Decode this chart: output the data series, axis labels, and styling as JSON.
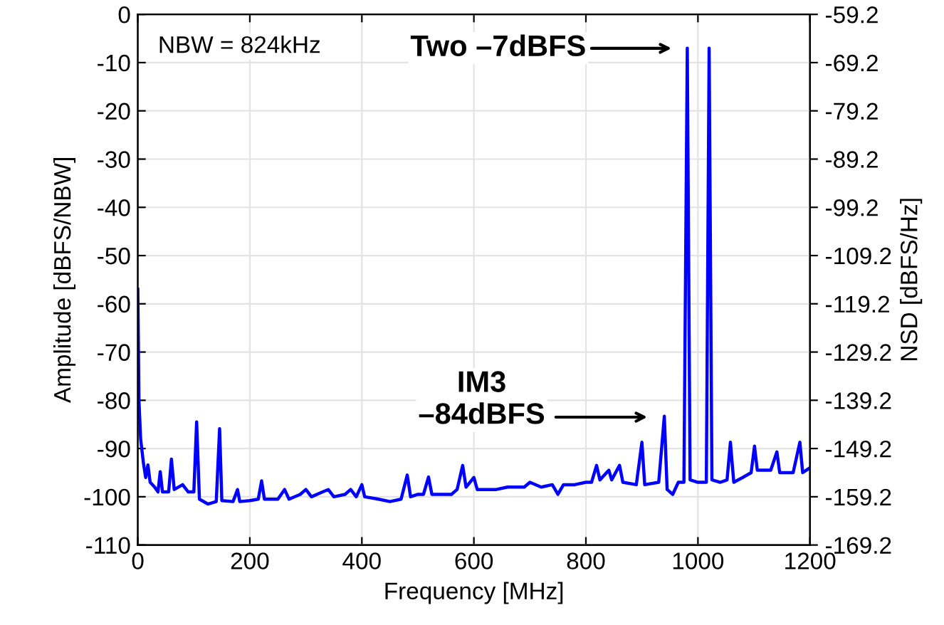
{
  "chart_data": {
    "type": "line",
    "xlabel": "Frequency [MHz]",
    "ylabel": "Amplitude [dBFS/NBW]",
    "y2label": "NSD [dBFS/Hz]",
    "xlim": [
      0,
      1200
    ],
    "xticks": [
      0,
      200,
      400,
      600,
      800,
      1000,
      1200
    ],
    "ylim": [
      -110,
      0
    ],
    "yticks": [
      -110,
      -100,
      -90,
      -80,
      -70,
      -60,
      -50,
      -40,
      -30,
      -20,
      -10,
      0
    ],
    "y2lim": [
      -169.2,
      -59.2
    ],
    "y2ticks": [
      -169.2,
      -159.2,
      -149.2,
      -139.2,
      -129.2,
      -119.2,
      -109.2,
      -99.2,
      -89.2,
      -79.2,
      -69.2,
      -59.2
    ],
    "grid": true,
    "annotations": [
      "NBW = 824kHz",
      "Two –7dBFS",
      "IM3\n–84dBFS"
    ],
    "series": [
      {
        "color": "#0000ff",
        "x": [
          0,
          2,
          5,
          10,
          14,
          18,
          22,
          30,
          36,
          40,
          44,
          55,
          60,
          65,
          80,
          90,
          100,
          105,
          110,
          125,
          140,
          146,
          150,
          170,
          178,
          182,
          200,
          215,
          221,
          226,
          250,
          262,
          270,
          290,
          300,
          310,
          330,
          340,
          350,
          370,
          380,
          390,
          400,
          405,
          430,
          450,
          470,
          481,
          487,
          500,
          510,
          519,
          525,
          560,
          570,
          580,
          586,
          600,
          606,
          640,
          660,
          690,
          700,
          720,
          740,
          750,
          760,
          780,
          800,
          810,
          819,
          825,
          841,
          846,
          860,
          866,
          890,
          900,
          905,
          930,
          940,
          945,
          955,
          965,
          975,
          981,
          986,
          1000,
          1015,
          1020,
          1025,
          1040,
          1052,
          1058,
          1064,
          1080,
          1095,
          1101,
          1106,
          1130,
          1141,
          1146,
          1170,
          1182,
          1187,
          1200
        ],
        "values": [
          -57,
          -80,
          -88,
          -93,
          -96,
          -93.4,
          -97,
          -98,
          -99,
          -94.8,
          -99,
          -99,
          -92.2,
          -98.5,
          -97.5,
          -99,
          -99,
          -84.5,
          -100.5,
          -101.5,
          -101,
          -85.9,
          -100.8,
          -101,
          -98.5,
          -101,
          -100.8,
          -100.5,
          -96.7,
          -100.5,
          -100.5,
          -98.5,
          -100.5,
          -99.5,
          -98.5,
          -100,
          -99,
          -98.5,
          -100,
          -99.5,
          -98.5,
          -100,
          -97.5,
          -100,
          -100.5,
          -101,
          -100.5,
          -95.5,
          -100,
          -99.5,
          -99.5,
          -95.9,
          -99.5,
          -99.5,
          -98.5,
          -93.5,
          -98,
          -96,
          -98.5,
          -98.5,
          -98,
          -98,
          -97,
          -98,
          -97.5,
          -99.5,
          -97.5,
          -97.5,
          -97,
          -97,
          -93.5,
          -96.5,
          -94.5,
          -96.5,
          -93.5,
          -97,
          -97.5,
          -88.7,
          -97.5,
          -97,
          -83.3,
          -98.5,
          -99.5,
          -97,
          -97,
          -7,
          -96.5,
          -97,
          -97,
          -7,
          -96.5,
          -97,
          -96.5,
          -88.7,
          -97,
          -96,
          -95,
          -89.5,
          -94.5,
          -94.5,
          -90.7,
          -95,
          -95,
          -88.7,
          -95,
          -94
        ]
      }
    ]
  }
}
